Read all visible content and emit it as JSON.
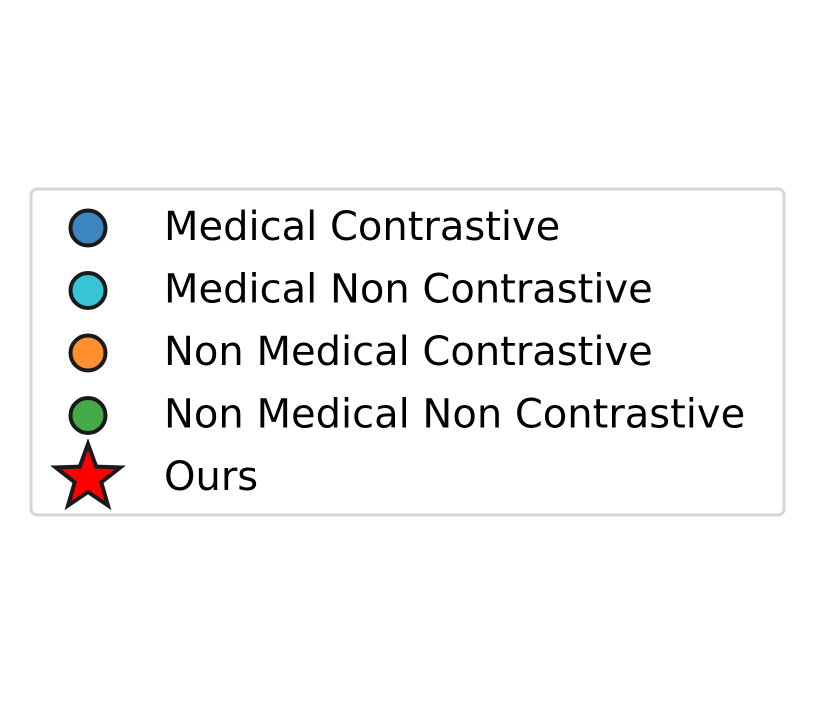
{
  "chart_data": {
    "type": "scatter",
    "legend_placement": "center",
    "series": [
      {
        "name": "Medical Contrastive",
        "marker": "circle",
        "color": "#3d85c0"
      },
      {
        "name": "Medical Non Contrastive",
        "marker": "circle",
        "color": "#37c4d4"
      },
      {
        "name": "Non Medical Contrastive",
        "marker": "circle",
        "color": "#ff8f2f"
      },
      {
        "name": "Non Medical Non Contrastive",
        "marker": "circle",
        "color": "#45a947"
      },
      {
        "name": "Ours",
        "marker": "star",
        "color": "#ff0000"
      }
    ]
  }
}
